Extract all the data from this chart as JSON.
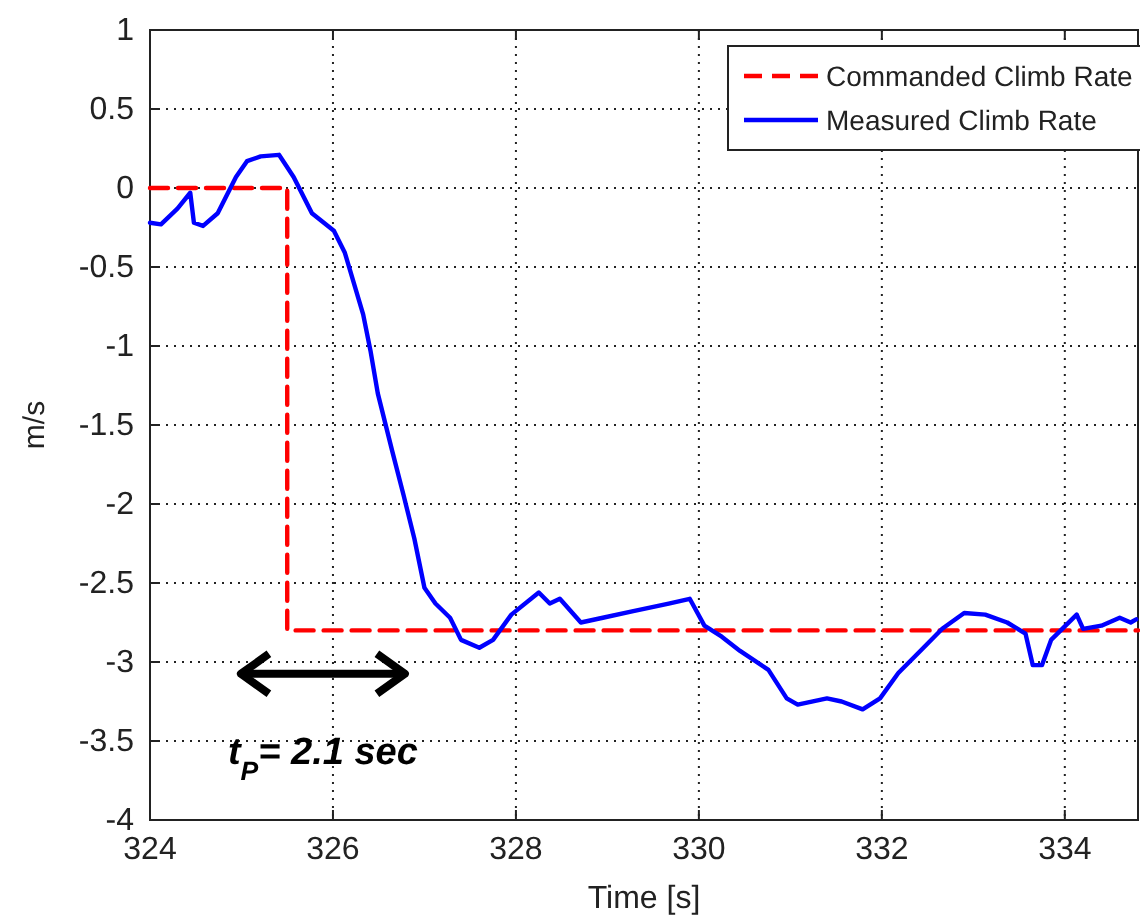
{
  "chart_data": {
    "type": "line",
    "xlabel": "Time [s]",
    "ylabel": "m/s",
    "xlim": [
      324,
      334.8
    ],
    "ylim": [
      -4,
      1
    ],
    "xticks": [
      324,
      326,
      328,
      330,
      332,
      334
    ],
    "yticks": [
      -4,
      -3.5,
      -3,
      -2.5,
      -2,
      -1.5,
      -1,
      -0.5,
      0,
      0.5,
      1
    ],
    "grid": true,
    "legend": "top right",
    "annotations": [
      "t$_{P}$= 2.1 sec"
    ],
    "series": [
      {
        "name": "Commanded Climb Rate",
        "color": "#ff0000",
        "line_style": "dashed",
        "x": [
          324,
          325.5,
          325.5,
          334.8
        ],
        "values": [
          0,
          0,
          -2.8,
          -2.8
        ]
      },
      {
        "name": "Measured Climb Rate",
        "color": "#0000ff",
        "line_style": "solid",
        "x": [
          324,
          324.12,
          324.3,
          324.44,
          324.48,
          324.58,
          324.74,
          324.94,
          325.06,
          325.21,
          325.41,
          325.57,
          325.77,
          326.01,
          326.13,
          326.33,
          326.41,
          326.49,
          326.65,
          326.77,
          326.89,
          327.0,
          327.12,
          327.28,
          327.4,
          327.6,
          327.75,
          327.95,
          328.25,
          328.37,
          328.48,
          328.71,
          328.95,
          329.27,
          329.67,
          329.9,
          330.06,
          330.25,
          330.45,
          330.76,
          330.96,
          331.08,
          331.4,
          331.56,
          331.79,
          331.98,
          332.18,
          332.42,
          332.66,
          332.9,
          333.13,
          333.37,
          333.57,
          333.65,
          333.75,
          333.85,
          334.13,
          334.2,
          334.4,
          334.6,
          334.72,
          334.78
        ],
        "values": [
          -0.22,
          -0.23,
          -0.13,
          -0.03,
          -0.22,
          -0.24,
          -0.16,
          0.07,
          0.17,
          0.2,
          0.21,
          0.07,
          -0.16,
          -0.27,
          -0.41,
          -0.8,
          -1.03,
          -1.3,
          -1.67,
          -1.94,
          -2.22,
          -2.53,
          -2.63,
          -2.72,
          -2.86,
          -2.91,
          -2.86,
          -2.7,
          -2.56,
          -2.63,
          -2.6,
          -2.75,
          -2.72,
          -2.68,
          -2.63,
          -2.6,
          -2.77,
          -2.84,
          -2.93,
          -3.05,
          -3.23,
          -3.27,
          -3.23,
          -3.25,
          -3.3,
          -3.23,
          -3.07,
          -2.93,
          -2.79,
          -2.69,
          -2.7,
          -2.75,
          -2.82,
          -3.02,
          -3.02,
          -2.86,
          -2.7,
          -2.79,
          -2.77,
          -2.72,
          -2.75,
          -2.73
        ]
      }
    ]
  }
}
